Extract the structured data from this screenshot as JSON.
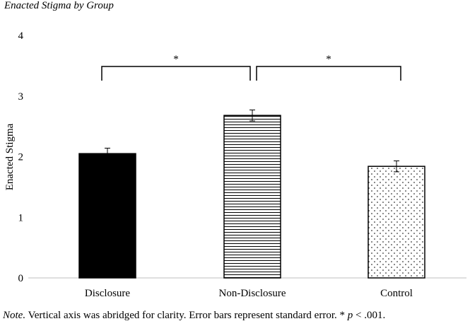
{
  "chart_data": {
    "type": "bar",
    "title": "Enacted Stigma by Group",
    "xlabel": "",
    "ylabel": "Enacted Stigma",
    "categories": [
      "Disclosure",
      "Non-Disclosure",
      "Control"
    ],
    "values": [
      2.05,
      2.68,
      1.84
    ],
    "error": [
      0.09,
      0.09,
      0.09
    ],
    "ylim": [
      0,
      4
    ],
    "yticks": [
      "0",
      "1",
      "2",
      "3",
      "4"
    ],
    "grid": false,
    "legend": "none",
    "bar_patterns": [
      "solid-black",
      "horizontal-lines",
      "dots"
    ],
    "annotations": [
      {
        "from": "Disclosure",
        "to": "Non-Disclosure",
        "label": "*"
      },
      {
        "from": "Non-Disclosure",
        "to": "Control",
        "label": "*"
      }
    ]
  },
  "note": {
    "prefix": "Note.",
    "text_before_p": " Vertical axis was abridged for clarity. Error bars represent standard error. * ",
    "p_symbol": "p",
    "text_after_p": " < .001."
  }
}
